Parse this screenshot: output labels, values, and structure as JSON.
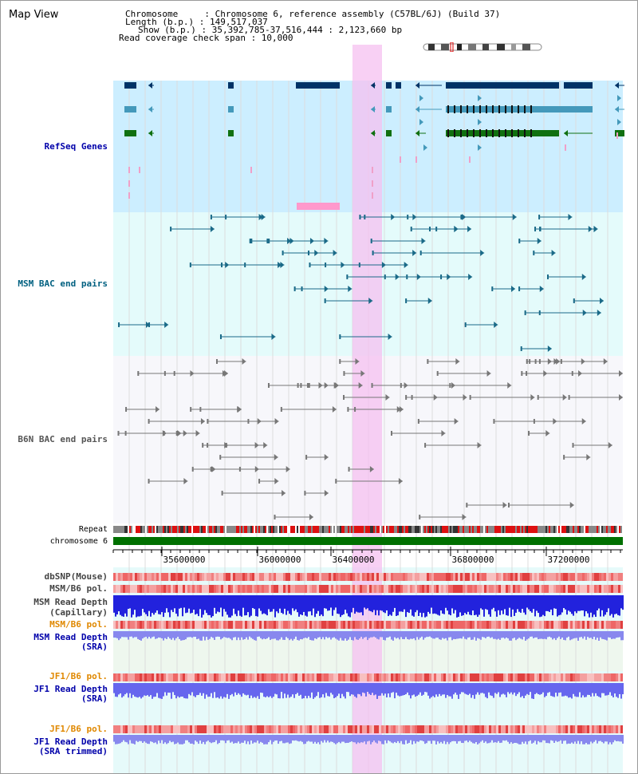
{
  "title": "Map View",
  "header": {
    "chrom_label": "Chromosome     : Chromosome 6, reference assembly (C57BL/6J) (Build 37)",
    "length_label": "Length (b.p.) : 149,517,037",
    "show_label": "Show (b.p.) : 35,392,785-37,516,444 : 2,123,660 bp",
    "coverage_label": "Read coverage check span : 10,000"
  },
  "tracks": {
    "refseq": {
      "label": "RefSeq Genes",
      "color": "#0000aa"
    },
    "msm_bac": {
      "label": "MSM BAC end pairs",
      "color": "#006080"
    },
    "b6n_bac": {
      "label": "B6N BAC end pairs",
      "color": "#666666"
    },
    "repeat": {
      "label": "Repeat"
    },
    "chromosome": {
      "label": "chromosome 6"
    },
    "dbsnp": {
      "label": "dbSNP(Mouse)"
    },
    "msm_b6_pol_1": {
      "label": "MSM/B6 pol."
    },
    "msm_read_depth_cap": {
      "label": "MSM Read Depth",
      "sub": "(Capillary)"
    },
    "msm_b6_pol_2": {
      "label": "MSM/B6 pol.",
      "color": "#e08800"
    },
    "msm_read_depth_sra": {
      "label": "MSM Read Depth",
      "sub": "(SRA)"
    },
    "jf1_b6_pol_1": {
      "label": "JF1/B6 pol.",
      "color": "#e08800"
    },
    "jf1_read_depth_sra": {
      "label": "JF1 Read Depth",
      "sub": "(SRA)"
    },
    "jf1_b6_pol_2": {
      "label": "JF1/B6 pol.",
      "color": "#e08800"
    },
    "jf1_read_depth_trimmed": {
      "label": "JF1 Read Depth",
      "sub": "(SRA trimmed)"
    }
  },
  "axis": {
    "ticks": [
      "35600000",
      "36000000",
      "36400000",
      "36800000",
      "37200000"
    ]
  },
  "colors": {
    "highlight": "#f5c0f0",
    "refseq_bg": "#cceeff",
    "msm_bg": "#e4fbfb",
    "b6n_bg": "#f7f7fb",
    "chromosome_bar": "#007000"
  }
}
